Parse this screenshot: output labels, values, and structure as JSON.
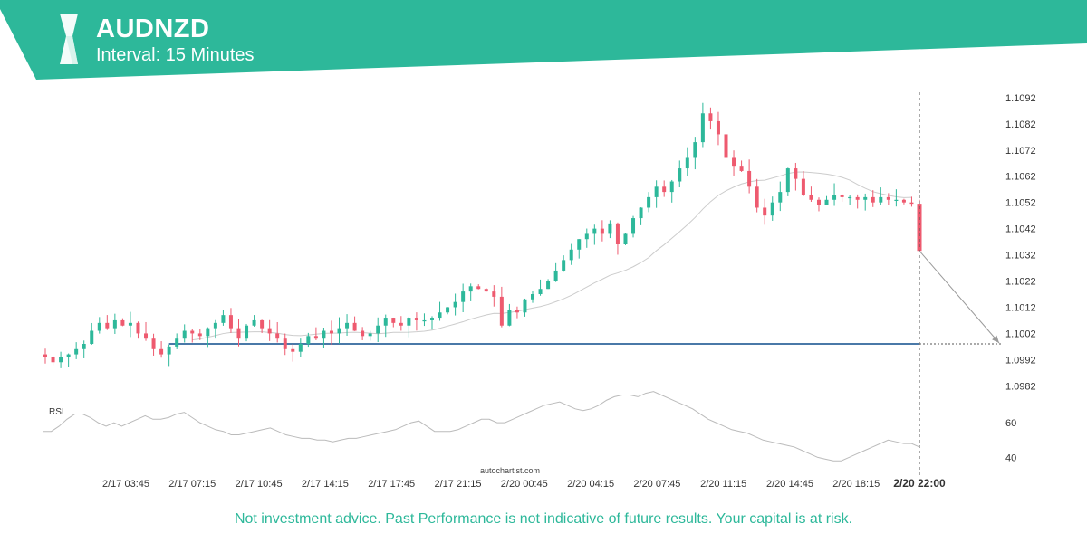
{
  "header": {
    "symbol": "AUDNZD",
    "interval": "Interval: 15 Minutes",
    "brand_color": "#2db89a",
    "logo_icon": "autochartist-logo-icon"
  },
  "chart_data": {
    "type": "candlestick",
    "symbol": "AUDNZD",
    "price_ticks": [
      1.1092,
      1.1082,
      1.1072,
      1.1062,
      1.1052,
      1.1042,
      1.1032,
      1.1022,
      1.1012,
      1.1002,
      1.0992,
      1.0982
    ],
    "ylim": [
      1.0979,
      1.1093
    ],
    "time_ticks": [
      "2/17 03:45",
      "2/17 07:15",
      "2/17 10:45",
      "2/17 14:15",
      "2/17 17:45",
      "2/17 21:15",
      "2/20 00:45",
      "2/20 04:15",
      "2/20 07:45",
      "2/20 11:15",
      "2/20 14:45",
      "2/20 18:15"
    ],
    "current_time_label": "2/20 22:00",
    "support_level": 1.0998,
    "last_candle": {
      "open": 1.10515,
      "close": 1.10335,
      "high": 1.1053,
      "low": 1.10335
    },
    "forecast_target": 1.0998,
    "closes": [
      1.0993,
      1.0991,
      1.0993,
      1.0994,
      1.0996,
      1.0998,
      1.1003,
      1.1006,
      1.1004,
      1.1007,
      1.1005,
      1.1006,
      1.1002,
      1.1,
      1.0996,
      1.0994,
      1.0997,
      1.1,
      1.1003,
      1.1002,
      1.1001,
      1.1004,
      1.1006,
      1.1009,
      1.1004,
      1.1,
      1.1005,
      1.1007,
      1.1004,
      1.1002,
      1.1,
      1.0996,
      1.0995,
      1.0998,
      1.1001,
      1.1,
      1.1003,
      1.1002,
      1.1004,
      1.1006,
      1.1003,
      1.1001,
      1.1002,
      1.1005,
      1.1008,
      1.1006,
      1.1005,
      1.1008,
      1.1007,
      1.1007,
      1.1008,
      1.101,
      1.1012,
      1.1014,
      1.1018,
      1.102,
      1.1019,
      1.1018,
      1.1016,
      1.1005,
      1.1011,
      1.101,
      1.1015,
      1.1017,
      1.1019,
      1.1022,
      1.1026,
      1.103,
      1.1034,
      1.1038,
      1.104,
      1.1042,
      1.104,
      1.1044,
      1.1036,
      1.104,
      1.1046,
      1.105,
      1.1054,
      1.1058,
      1.1056,
      1.106,
      1.1065,
      1.1069,
      1.1075,
      1.1086,
      1.1083,
      1.1078,
      1.1069,
      1.1066,
      1.1064,
      1.1058,
      1.105,
      1.1047,
      1.1052,
      1.1056,
      1.1065,
      1.1061,
      1.1055,
      1.1053,
      1.1051,
      1.1053,
      1.1055,
      1.1054,
      1.1054,
      1.1053,
      1.1054,
      1.1052,
      1.1054,
      1.1053,
      1.1053,
      1.1052,
      1.10515
    ],
    "rsi": {
      "label": "RSI",
      "ticks": [
        60,
        40
      ],
      "ylim": [
        35,
        82
      ],
      "values": [
        55,
        55,
        58,
        62,
        65,
        65,
        63,
        60,
        58,
        60,
        58,
        60,
        62,
        64,
        62,
        62,
        63,
        65,
        66,
        63,
        60,
        58,
        56,
        55,
        53,
        53,
        54,
        55,
        56,
        57,
        55,
        53,
        52,
        51,
        51,
        50,
        50,
        49,
        50,
        51,
        51,
        52,
        53,
        54,
        55,
        56,
        58,
        60,
        61,
        58,
        55,
        55,
        55,
        56,
        58,
        60,
        62,
        62,
        60,
        60,
        62,
        64,
        66,
        68,
        70,
        71,
        72,
        70,
        68,
        67,
        68,
        70,
        73,
        75,
        76,
        76,
        75,
        77,
        78,
        76,
        74,
        72,
        70,
        68,
        65,
        62,
        60,
        58,
        56,
        55,
        54,
        52,
        50,
        49,
        48,
        47,
        46,
        44,
        42,
        40,
        39,
        38,
        38,
        40,
        42,
        44,
        46,
        48,
        50,
        49,
        48,
        48,
        46
      ]
    },
    "ma_period": 20,
    "colors": {
      "bull": "#2db89a",
      "bear": "#ee5a6f",
      "support": "#4a79a8",
      "ma": "#cccccc",
      "rsi": "#bbbbbb"
    }
  },
  "watermark": "autochartist.com",
  "disclaimer": "Not investment advice. Past Performance is not indicative of future results. Your capital is at risk."
}
